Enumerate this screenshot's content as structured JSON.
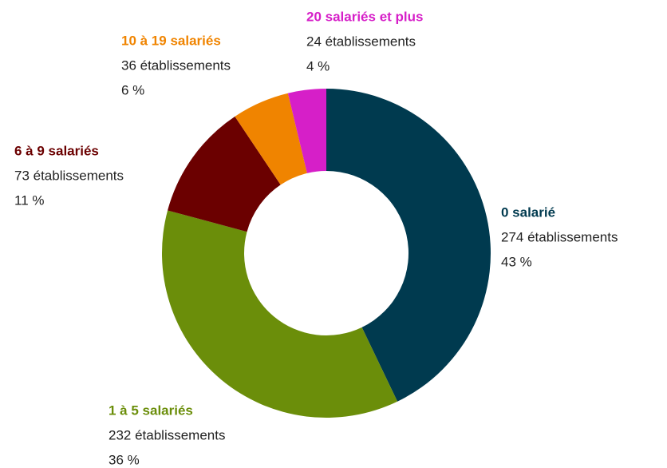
{
  "chart_data": {
    "type": "donut",
    "categories": [
      "0 salarié",
      "1 à 5 salariés",
      "6 à 9 salariés",
      "10 à 19 salariés",
      "20 salariés et plus"
    ],
    "series": [
      {
        "values": [
          274,
          232,
          73,
          36,
          24
        ],
        "value_labels": [
          "274 établissements",
          "232 établissements",
          "73 établissements",
          "36 établissements",
          "24 établissements"
        ],
        "percent_labels": [
          "43 %",
          "36 %",
          "11 %",
          "6 %",
          "4 %"
        ],
        "colors": [
          "#003a4f",
          "#6b8e0a",
          "#6b0000",
          "#f08400",
          "#d61fc8"
        ]
      }
    ]
  }
}
